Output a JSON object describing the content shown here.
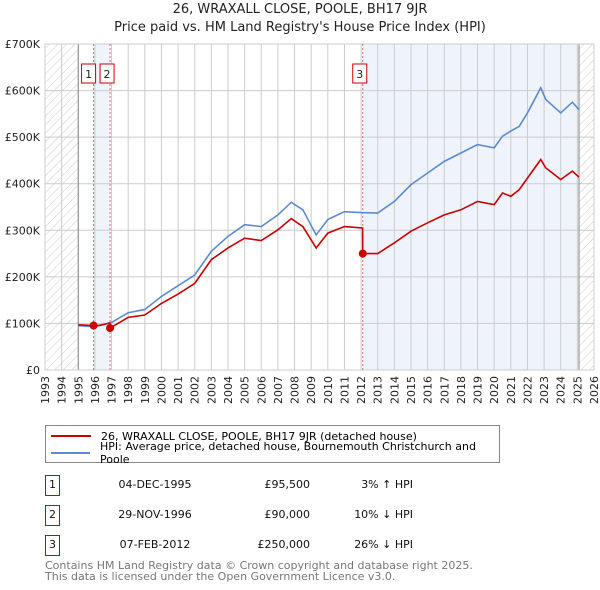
{
  "chart_data": {
    "type": "line",
    "title": "26, WRAXALL CLOSE, POOLE, BH17 9JR",
    "subtitle": "Price paid vs. HM Land Registry's House Price Index (HPI)",
    "xlim": [
      1993,
      2026
    ],
    "ylim": [
      0,
      700000
    ],
    "x_ticks": [
      "1993",
      "1994",
      "1995",
      "1996",
      "1997",
      "1998",
      "1999",
      "2000",
      "2001",
      "2002",
      "2003",
      "2004",
      "2005",
      "2006",
      "2007",
      "2008",
      "2009",
      "2010",
      "2011",
      "2012",
      "2013",
      "2014",
      "2015",
      "2016",
      "2017",
      "2018",
      "2019",
      "2020",
      "2021",
      "2022",
      "2023",
      "2024",
      "2025",
      "2026"
    ],
    "y_ticks": [
      {
        "v": 0,
        "label": "£0"
      },
      {
        "v": 100000,
        "label": "£100K"
      },
      {
        "v": 200000,
        "label": "£200K"
      },
      {
        "v": 300000,
        "label": "£300K"
      },
      {
        "v": 400000,
        "label": "£400K"
      },
      {
        "v": 500000,
        "label": "£500K"
      },
      {
        "v": 600000,
        "label": "£600K"
      },
      {
        "v": 700000,
        "label": "£700K"
      }
    ],
    "grid": true,
    "series": [
      {
        "name": "26, WRAXALL CLOSE, POOLE, BH17 9JR (detached house)",
        "color": "#cc0000",
        "x": [
          1995,
          1995.92,
          1996.3,
          1996.9,
          1996.91,
          1998,
          1999,
          2000,
          2001,
          2002,
          2003,
          2004,
          2005,
          2006,
          2007,
          2007.8,
          2008.5,
          2009.3,
          2010,
          2011,
          2012.09,
          2012.1,
          2013,
          2014,
          2015,
          2016,
          2017,
          2018,
          2019,
          2020,
          2020.5,
          2021,
          2021.5,
          2022,
          2022.8,
          2023.1,
          2024,
          2024.7,
          2025.1
        ],
        "y": [
          97000,
          95500,
          96000,
          101000,
          90000,
          113000,
          118000,
          143000,
          163000,
          186000,
          237000,
          262000,
          283000,
          278000,
          301000,
          325000,
          308000,
          262000,
          294000,
          308000,
          305000,
          250000,
          250000,
          273000,
          298000,
          316000,
          333000,
          344000,
          362000,
          355000,
          380000,
          373000,
          387000,
          412000,
          452000,
          434000,
          409000,
          427000,
          414000
        ]
      },
      {
        "name": "HPI: Average price, detached house, Bournemouth Christchurch and Poole",
        "color": "#5b8bd0",
        "x": [
          1995,
          1996,
          1997,
          1998,
          1999,
          2000,
          2001,
          2002,
          2003,
          2004,
          2005,
          2006,
          2007,
          2007.8,
          2008.5,
          2009.3,
          2010,
          2011,
          2012,
          2013,
          2014,
          2015,
          2016,
          2017,
          2018,
          2019,
          2020,
          2020.5,
          2021,
          2021.5,
          2022,
          2022.8,
          2023.1,
          2024,
          2024.7,
          2025.1
        ],
        "y": [
          95000,
          93000,
          102000,
          123000,
          130000,
          158000,
          181000,
          204000,
          255000,
          287000,
          312000,
          308000,
          333000,
          360000,
          344000,
          290000,
          323000,
          340000,
          338000,
          337000,
          362000,
          398000,
          423000,
          448000,
          466000,
          484000,
          477000,
          502000,
          513000,
          523000,
          552000,
          606000,
          581000,
          552000,
          575000,
          559000
        ]
      }
    ],
    "sales": [
      {
        "n": "1",
        "x": 1995.92,
        "y": 95500,
        "date": "04-DEC-1995",
        "price": "£95,500",
        "hpi": "3% ↑ HPI"
      },
      {
        "n": "2",
        "x": 1996.91,
        "y": 90000,
        "date": "29-NOV-1996",
        "price": "£90,000",
        "hpi": "10% ↓ HPI"
      },
      {
        "n": "3",
        "x": 2012.1,
        "y": 250000,
        "date": "07-FEB-2012",
        "price": "£250,000",
        "hpi": "26% ↓ HPI"
      }
    ],
    "data_end": 2025.1,
    "legend_placement": "below"
  },
  "footer": {
    "line1": "Contains HM Land Registry data © Crown copyright and database right 2025.",
    "line2": "This data is licensed under the Open Government Licence v3.0."
  }
}
